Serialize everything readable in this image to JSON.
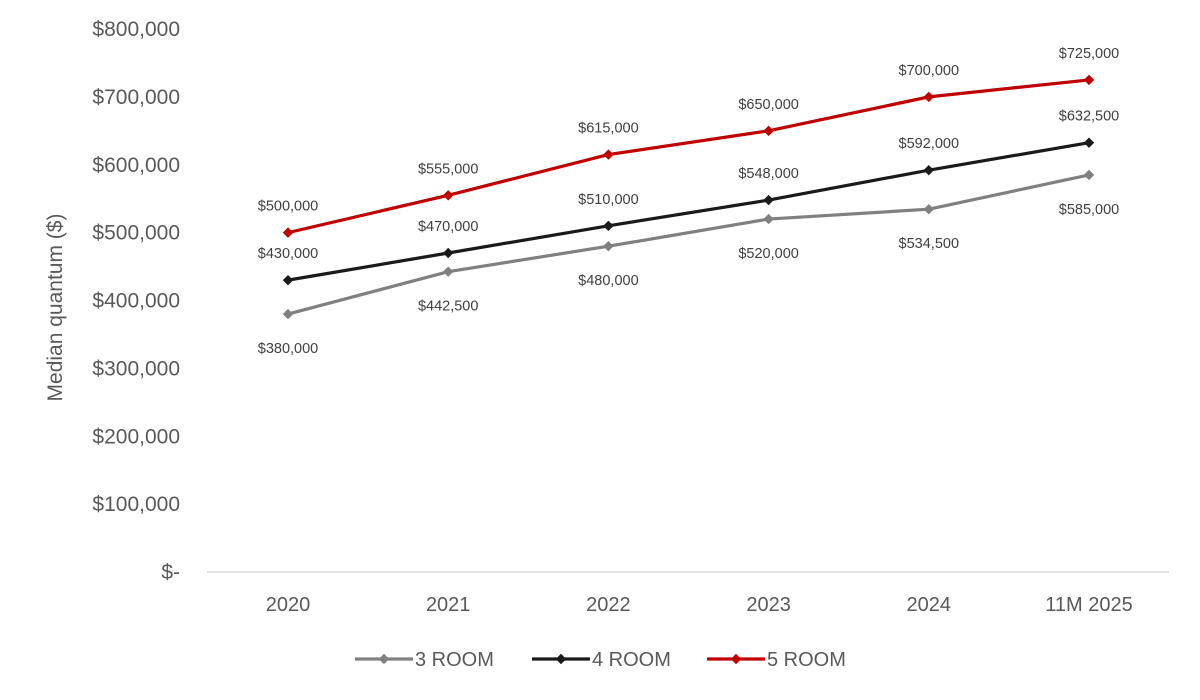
{
  "chart_data": {
    "type": "line",
    "title": "",
    "xlabel": "",
    "ylabel": "Median quantum ($)",
    "categories": [
      "2020",
      "2021",
      "2022",
      "2023",
      "2024",
      "11M 2025"
    ],
    "ylim": [
      0,
      800000
    ],
    "y_ticks": [
      0,
      100000,
      200000,
      300000,
      400000,
      500000,
      600000,
      700000,
      800000
    ],
    "y_tick_labels": [
      "$-",
      "$100,000",
      "$200,000",
      "$300,000",
      "$400,000",
      "$500,000",
      "$600,000",
      "$700,000",
      "$800,000"
    ],
    "grid": false,
    "legend_position": "bottom",
    "series": [
      {
        "name": "3 ROOM",
        "color": "#808080",
        "values": [
          380000,
          442500,
          480000,
          520000,
          534500,
          585000
        ],
        "data_labels": [
          "$380,000",
          "$442,500",
          "$480,000",
          "$520,000",
          "$534,500",
          "$585,000"
        ],
        "label_placement": "below"
      },
      {
        "name": "4 ROOM",
        "color": "#1a1a1a",
        "values": [
          430000,
          470000,
          510000,
          548000,
          592000,
          632500
        ],
        "data_labels": [
          "$430,000",
          "$470,000",
          "$510,000",
          "$548,000",
          "$592,000",
          "$632,500"
        ],
        "label_placement": "above"
      },
      {
        "name": "5 ROOM",
        "color": "#c00000",
        "values": [
          500000,
          555000,
          615000,
          650000,
          700000,
          725000
        ],
        "data_labels": [
          "$500,000",
          "$555,000",
          "$615,000",
          "$650,000",
          "$700,000",
          "$725,000"
        ],
        "label_placement": "above"
      }
    ]
  }
}
